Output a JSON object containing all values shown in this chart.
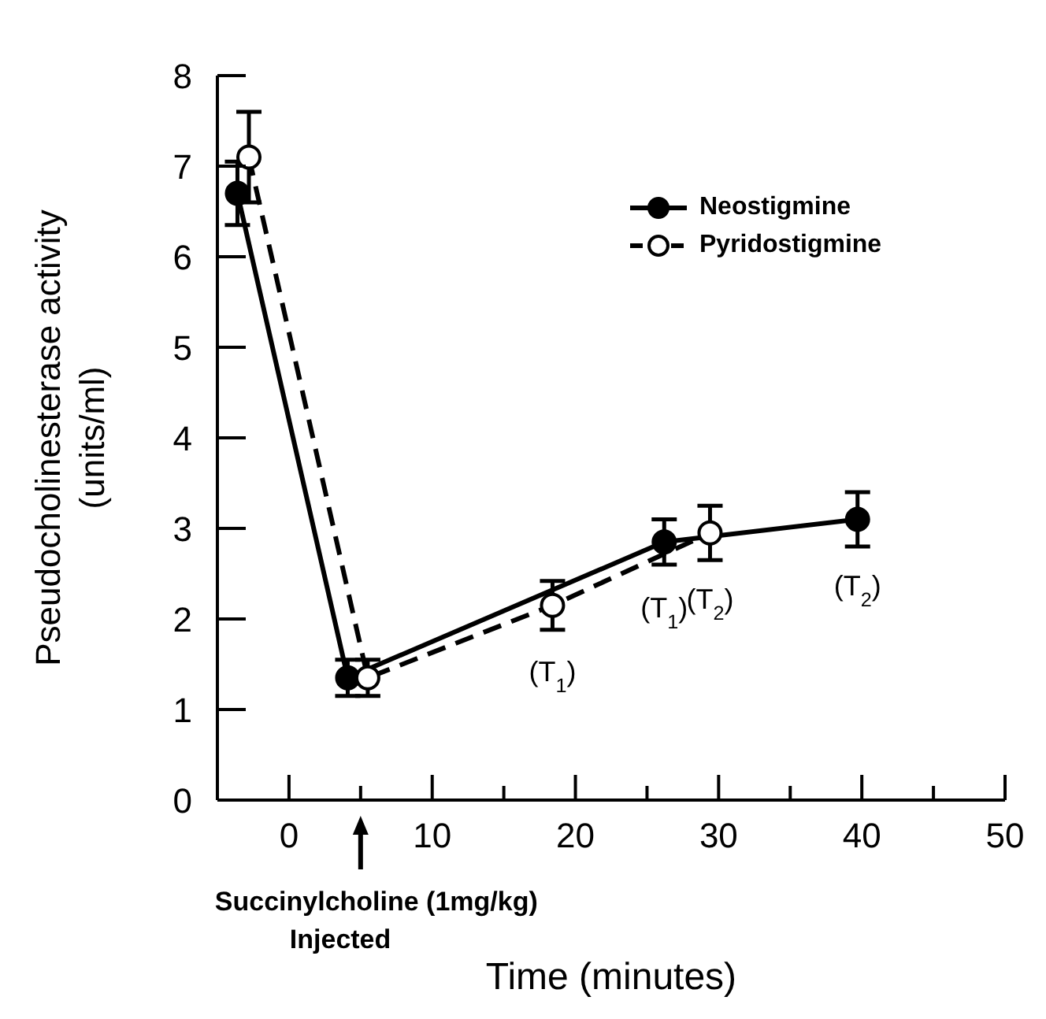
{
  "chart_data": {
    "type": "line",
    "xlabel": "Time (minutes)",
    "ylabel": "Pseudocholinesterase activity\n(units/ml)",
    "xlim": [
      -5,
      50
    ],
    "xticks": [
      0,
      {
        "value": 5,
        "label": null
      },
      10,
      {
        "value": 15,
        "label": null
      },
      20,
      {
        "value": 25,
        "label": null
      },
      30,
      {
        "value": 35,
        "label": null
      },
      40,
      {
        "value": 45,
        "label": null
      },
      50
    ],
    "ylim": [
      0,
      8
    ],
    "yticks": [
      0,
      1,
      2,
      3,
      4,
      5,
      6,
      7,
      8
    ],
    "series": [
      {
        "name": "Neostigmine",
        "color": "#000000",
        "x": [
          -3.6,
          4.1,
          26.2,
          39.7
        ],
        "values": [
          6.7,
          1.35,
          2.85,
          3.1
        ],
        "errors": [
          0.35,
          0.2,
          0.25,
          0.3
        ],
        "line_style": "solid"
      },
      {
        "name": "Pyridostigmine",
        "color": "#000000",
        "x": [
          -2.8,
          5.5,
          18.4,
          29.4
        ],
        "values": [
          7.1,
          1.35,
          2.15,
          2.95
        ],
        "errors": [
          0.5,
          0.2,
          0.27,
          0.3
        ],
        "line_style": "dashed"
      }
    ],
    "marker": "circle",
    "legend": "top right",
    "annotations": [
      {
        "text": "(T$_{1}$)",
        "x": 18.4,
        "y": 2.15
      },
      {
        "text": "(T$_{1}$)",
        "x": 26.2,
        "y": 2.85
      },
      {
        "text": "(T$_{2}$)",
        "x": 29.4,
        "y": 2.95
      },
      {
        "text": "(T$_{2}$)",
        "x": 39.7,
        "y": 3.1
      },
      "Succinylcholine (1mg/kg)\nInjected"
    ]
  }
}
